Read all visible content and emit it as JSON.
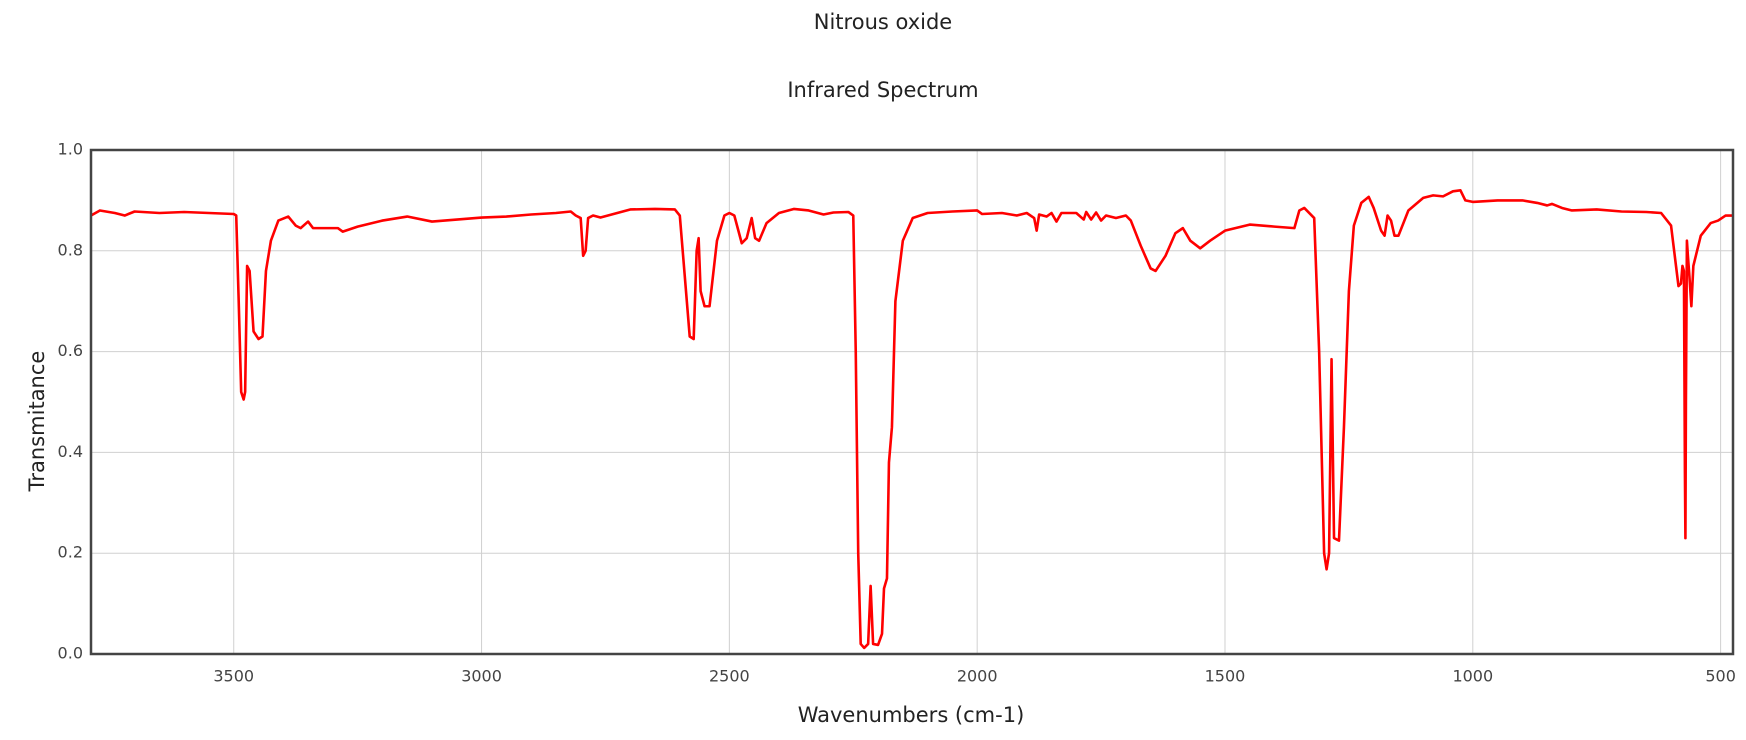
{
  "chart_data": {
    "type": "line",
    "title": "Nitrous oxide",
    "subtitle": "Infrared Spectrum",
    "x_label": "Wavenumbers (cm-1)",
    "y_label": "Transmitance",
    "color": "#ff0000",
    "grid": true,
    "xlim": [
      3788,
      475
    ],
    "ylim": [
      0,
      1
    ],
    "xticks": [
      3500,
      3000,
      2500,
      2000,
      1500,
      1000,
      500
    ],
    "yticks": [
      {
        "value": 0,
        "label": "0.0"
      },
      0.2,
      0.4,
      0.6,
      0.8,
      {
        "value": 1,
        "label": "1.0"
      }
    ],
    "x": [
      3788,
      3770,
      3740,
      3720,
      3700,
      3650,
      3600,
      3550,
      3500,
      3495,
      3490,
      3485,
      3480,
      3477,
      3473,
      3468,
      3460,
      3450,
      3442,
      3435,
      3425,
      3410,
      3390,
      3375,
      3365,
      3350,
      3340,
      3310,
      3290,
      3280,
      3250,
      3200,
      3150,
      3100,
      3050,
      3000,
      2950,
      2900,
      2850,
      2820,
      2810,
      2800,
      2795,
      2790,
      2785,
      2775,
      2760,
      2700,
      2650,
      2610,
      2600,
      2590,
      2580,
      2572,
      2566,
      2562,
      2558,
      2550,
      2540,
      2525,
      2510,
      2500,
      2490,
      2475,
      2465,
      2455,
      2448,
      2440,
      2425,
      2400,
      2370,
      2340,
      2310,
      2290,
      2260,
      2250,
      2245,
      2240,
      2235,
      2228,
      2220,
      2215,
      2210,
      2200,
      2192,
      2188,
      2182,
      2178,
      2172,
      2165,
      2150,
      2130,
      2100,
      2050,
      2000,
      1990,
      1950,
      1920,
      1900,
      1885,
      1880,
      1875,
      1860,
      1850,
      1840,
      1830,
      1800,
      1785,
      1780,
      1770,
      1760,
      1750,
      1740,
      1720,
      1700,
      1690,
      1670,
      1650,
      1640,
      1620,
      1600,
      1585,
      1570,
      1550,
      1530,
      1500,
      1450,
      1400,
      1360,
      1350,
      1340,
      1320,
      1310,
      1300,
      1295,
      1290,
      1285,
      1280,
      1270,
      1260,
      1250,
      1240,
      1225,
      1210,
      1200,
      1185,
      1178,
      1172,
      1165,
      1158,
      1150,
      1130,
      1100,
      1080,
      1060,
      1040,
      1025,
      1015,
      1000,
      950,
      900,
      870,
      850,
      840,
      820,
      800,
      750,
      700,
      650,
      620,
      600,
      590,
      585,
      580,
      577,
      574,
      572,
      571,
      570,
      568,
      566,
      563,
      559,
      555,
      540,
      520,
      505,
      490,
      475
    ],
    "values": [
      0.87,
      0.88,
      0.875,
      0.87,
      0.878,
      0.875,
      0.877,
      0.875,
      0.873,
      0.87,
      0.7,
      0.52,
      0.505,
      0.52,
      0.77,
      0.76,
      0.64,
      0.625,
      0.63,
      0.76,
      0.82,
      0.86,
      0.868,
      0.85,
      0.845,
      0.858,
      0.845,
      0.845,
      0.845,
      0.838,
      0.848,
      0.86,
      0.868,
      0.858,
      0.862,
      0.866,
      0.868,
      0.872,
      0.875,
      0.878,
      0.87,
      0.865,
      0.79,
      0.8,
      0.865,
      0.87,
      0.866,
      0.882,
      0.883,
      0.882,
      0.87,
      0.75,
      0.63,
      0.625,
      0.8,
      0.825,
      0.72,
      0.69,
      0.69,
      0.82,
      0.87,
      0.875,
      0.87,
      0.815,
      0.825,
      0.865,
      0.825,
      0.82,
      0.855,
      0.875,
      0.883,
      0.88,
      0.872,
      0.876,
      0.877,
      0.87,
      0.6,
      0.2,
      0.02,
      0.012,
      0.02,
      0.135,
      0.02,
      0.018,
      0.04,
      0.13,
      0.15,
      0.38,
      0.45,
      0.7,
      0.82,
      0.865,
      0.875,
      0.878,
      0.88,
      0.873,
      0.875,
      0.87,
      0.875,
      0.865,
      0.84,
      0.872,
      0.868,
      0.875,
      0.858,
      0.875,
      0.875,
      0.862,
      0.877,
      0.862,
      0.876,
      0.86,
      0.87,
      0.865,
      0.87,
      0.86,
      0.81,
      0.765,
      0.76,
      0.79,
      0.835,
      0.845,
      0.82,
      0.805,
      0.82,
      0.84,
      0.852,
      0.848,
      0.845,
      0.88,
      0.885,
      0.865,
      0.6,
      0.2,
      0.168,
      0.2,
      0.585,
      0.23,
      0.225,
      0.45,
      0.72,
      0.85,
      0.895,
      0.907,
      0.885,
      0.84,
      0.83,
      0.87,
      0.86,
      0.83,
      0.83,
      0.88,
      0.905,
      0.91,
      0.908,
      0.918,
      0.92,
      0.9,
      0.897,
      0.9,
      0.9,
      0.895,
      0.89,
      0.893,
      0.885,
      0.88,
      0.882,
      0.878,
      0.877,
      0.875,
      0.85,
      0.77,
      0.73,
      0.735,
      0.77,
      0.76,
      0.36,
      0.23,
      0.5,
      0.82,
      0.79,
      0.75,
      0.69,
      0.77,
      0.83,
      0.855,
      0.86,
      0.87,
      0.87
    ]
  }
}
